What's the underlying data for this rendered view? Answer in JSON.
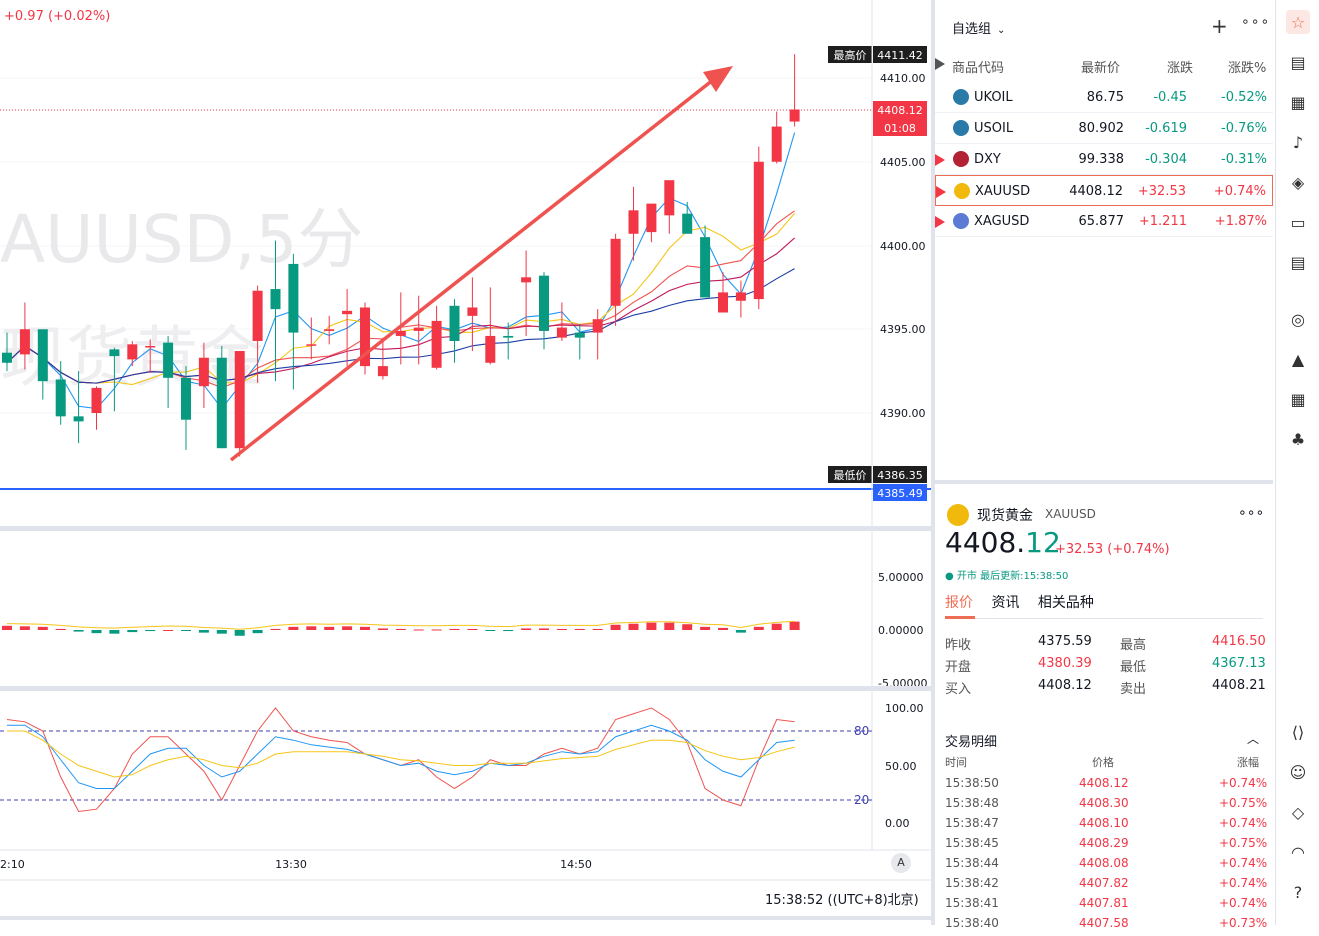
{
  "chart": {
    "change_top": "+0.97 (+0.02%)",
    "watermark_symbol": "AUUSD,5分",
    "watermark_name": "现货黄金",
    "high_tag_label": "最高价",
    "high_tag_value": "4411.42",
    "low_tag_label": "最低价",
    "low_tag_value": "4386.35",
    "price_tag": "4408.12",
    "countdown_tag": "01:08",
    "blue_line_tag": "4385.49",
    "price_axis_labels": [
      "4410.00",
      "4405.00",
      "4400.00",
      "4395.00",
      "4390.00"
    ],
    "macd_axis_labels": [
      "5.00000",
      "0.00000",
      "-5.00000"
    ],
    "kdj_axis_labels": [
      "100.00",
      "50.00",
      "0.00"
    ],
    "kdj_lines": [
      "80",
      "20"
    ],
    "time_labels": [
      "2:10",
      "13:30",
      "14:50"
    ],
    "time_readout": "15:38:52 ((UTC+8)北京)",
    "auto_label": "A",
    "colors": {
      "up": "#f23645",
      "down": "#089981",
      "blue": "#2962ff"
    }
  },
  "watchlist": {
    "title": "自选组",
    "headers": [
      "商品代码",
      "最新价",
      "涨跌",
      "涨跌%"
    ],
    "rows": [
      {
        "symbol": "UKOIL",
        "last": "86.75",
        "chg": "-0.45",
        "pct": "-0.52%",
        "dir": "neg",
        "icon": "oil-icon"
      },
      {
        "symbol": "USOIL",
        "last": "80.902",
        "chg": "-0.619",
        "pct": "-0.76%",
        "dir": "neg",
        "icon": "oil-icon"
      },
      {
        "symbol": "DXY",
        "last": "99.338",
        "chg": "-0.304",
        "pct": "-0.31%",
        "dir": "neg",
        "icon": "us-flag-icon"
      },
      {
        "symbol": "XAUUSD",
        "last": "4408.12",
        "chg": "+32.53",
        "pct": "+0.74%",
        "dir": "pos",
        "icon": "gold-icon"
      },
      {
        "symbol": "XAGUSD",
        "last": "65.877",
        "chg": "+1.211",
        "pct": "+1.87%",
        "dir": "pos",
        "icon": "silver-icon"
      }
    ]
  },
  "detail": {
    "name": "现货黄金",
    "code": "XAUUSD",
    "price_main": "4408.",
    "price_tail": "12",
    "change": "+32.53 (+0.74%)",
    "status": "● 开市 最后更新:15:38:50",
    "tabs": [
      "报价",
      "资讯",
      "相关品种"
    ],
    "quotes": [
      {
        "label": "昨收",
        "value": "4375.59",
        "label2": "最高",
        "value2": "4416.50"
      },
      {
        "label": "开盘",
        "value": "4380.39",
        "label2": "最低",
        "value2": "4367.13"
      },
      {
        "label": "买入",
        "value": "4408.12",
        "label2": "卖出",
        "value2": "4408.21"
      }
    ],
    "trades_title": "交易明细",
    "trade_headers": [
      "时间",
      "价格",
      "涨幅"
    ],
    "trades": [
      {
        "time": "15:38:50",
        "price": "4408.12",
        "pct": "+0.74%"
      },
      {
        "time": "15:38:48",
        "price": "4408.30",
        "pct": "+0.75%"
      },
      {
        "time": "15:38:47",
        "price": "4408.10",
        "pct": "+0.74%"
      },
      {
        "time": "15:38:45",
        "price": "4408.29",
        "pct": "+0.75%"
      },
      {
        "time": "15:38:44",
        "price": "4408.08",
        "pct": "+0.74%"
      },
      {
        "time": "15:38:42",
        "price": "4407.82",
        "pct": "+0.74%"
      },
      {
        "time": "15:38:41",
        "price": "4407.81",
        "pct": "+0.74%"
      },
      {
        "time": "15:38:40",
        "price": "4407.58",
        "pct": "+0.73%"
      }
    ]
  },
  "rail_icons": [
    "watchlist-icon",
    "notes-icon",
    "calendar-icon",
    "alert-bell-icon",
    "layers-icon",
    "video-icon",
    "chat-icon",
    "target-icon",
    "education-icon",
    "grid-icon",
    "community-icon",
    "code-brackets-icon",
    "bot-icon",
    "tag-icon",
    "headset-icon",
    "help-icon"
  ]
}
